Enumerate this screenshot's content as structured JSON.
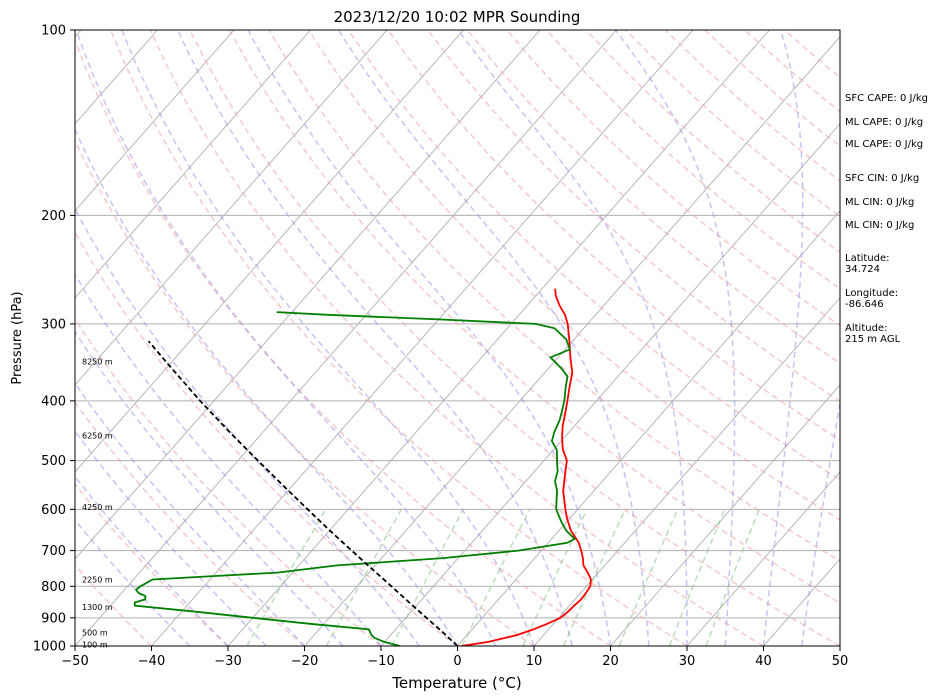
{
  "chart_data": {
    "type": "line",
    "title": "2023/12/20 10:02 MPR Sounding",
    "xlabel": "Temperature (°C)",
    "ylabel": "Pressure (hPa)",
    "xlim": [
      -50,
      50
    ],
    "ylim": [
      1000,
      100
    ],
    "y_scale": "log",
    "skew": true,
    "grid": true,
    "x_ticks": [
      "−50",
      "−40",
      "−30",
      "−20",
      "−10",
      "0",
      "10",
      "20",
      "30",
      "40",
      "50"
    ],
    "y_ticks": [
      "100",
      "200",
      "300",
      "400",
      "500",
      "600",
      "700",
      "800",
      "900",
      "1000"
    ],
    "x_tick_values": [
      -50,
      -40,
      -30,
      -20,
      -10,
      0,
      10,
      20,
      30,
      40,
      50
    ],
    "y_tick_values": [
      100,
      200,
      300,
      400,
      500,
      600,
      700,
      800,
      900,
      1000
    ],
    "height_labels": [
      {
        "text": "8250 m",
        "p": 345
      },
      {
        "text": "6250 m",
        "p": 455
      },
      {
        "text": "4250 m",
        "p": 595
      },
      {
        "text": "2250 m",
        "p": 780
      },
      {
        "text": "1300 m",
        "p": 865
      },
      {
        "text": "500 m",
        "p": 950
      },
      {
        "text": "100 m",
        "p": 995
      }
    ],
    "series": [
      {
        "color": "#ff0000",
        "style": "solid",
        "points": [
          [
            1000,
            0.5
          ],
          [
            985,
            3.5
          ],
          [
            960,
            6.5
          ],
          [
            940,
            8
          ],
          [
            920,
            9.2
          ],
          [
            900,
            10.2
          ],
          [
            880,
            10.5
          ],
          [
            860,
            10.6
          ],
          [
            840,
            10.8
          ],
          [
            820,
            10.7
          ],
          [
            800,
            10.5
          ],
          [
            780,
            9.8
          ],
          [
            760,
            8.6
          ],
          [
            740,
            7.2
          ],
          [
            720,
            6.3
          ],
          [
            700,
            5.2
          ],
          [
            680,
            4.0
          ],
          [
            650,
            1.6
          ],
          [
            620,
            -0.4
          ],
          [
            600,
            -1.6
          ],
          [
            560,
            -4.0
          ],
          [
            520,
            -6.0
          ],
          [
            500,
            -7.0
          ],
          [
            480,
            -8.8
          ],
          [
            460,
            -10.2
          ],
          [
            440,
            -11.5
          ],
          [
            420,
            -12.6
          ],
          [
            400,
            -13.8
          ],
          [
            380,
            -15.1
          ],
          [
            360,
            -16.4
          ],
          [
            340,
            -18.4
          ],
          [
            320,
            -20.4
          ],
          [
            300,
            -22.6
          ],
          [
            290,
            -24.0
          ],
          [
            280,
            -25.8
          ],
          [
            270,
            -27.4
          ],
          [
            263,
            -28.3
          ]
        ]
      },
      {
        "color": "#008000",
        "style": "solid",
        "points": [
          [
            1000,
            -7.5
          ],
          [
            985,
            -10
          ],
          [
            970,
            -11.8
          ],
          [
            960,
            -12.5
          ],
          [
            940,
            -13.5
          ],
          [
            920,
            -22
          ],
          [
            900,
            -30
          ],
          [
            880,
            -38
          ],
          [
            860,
            -46.8
          ],
          [
            850,
            -47.2
          ],
          [
            840,
            -46.2
          ],
          [
            830,
            -46.5
          ],
          [
            820,
            -47.8
          ],
          [
            810,
            -48.5
          ],
          [
            800,
            -48.3
          ],
          [
            780,
            -47.5
          ],
          [
            770,
            -40
          ],
          [
            760,
            -32
          ],
          [
            740,
            -25
          ],
          [
            720,
            -12
          ],
          [
            700,
            -3
          ],
          [
            680,
            2.5
          ],
          [
            670,
            3.0
          ],
          [
            650,
            1.0
          ],
          [
            630,
            -0.6
          ],
          [
            600,
            -2.8
          ],
          [
            580,
            -3.8
          ],
          [
            560,
            -4.8
          ],
          [
            540,
            -6.2
          ],
          [
            520,
            -7.0
          ],
          [
            505,
            -8.0
          ],
          [
            495,
            -8.6
          ],
          [
            480,
            -9.6
          ],
          [
            465,
            -11.2
          ],
          [
            450,
            -11.9
          ],
          [
            430,
            -12.6
          ],
          [
            420,
            -13.1
          ],
          [
            400,
            -14.2
          ],
          [
            380,
            -15.6
          ],
          [
            365,
            -16.6
          ],
          [
            355,
            -18.2
          ],
          [
            340,
            -21.0
          ],
          [
            330,
            -19.4
          ],
          [
            318,
            -21.0
          ],
          [
            305,
            -23.8
          ],
          [
            300,
            -26.8
          ],
          [
            295,
            -40
          ],
          [
            290,
            -55
          ],
          [
            287,
            -62
          ]
        ]
      },
      {
        "color": "#000000",
        "style": "dashed",
        "points": [
          [
            1000,
            0.0
          ],
          [
            950,
            -3.5
          ],
          [
            900,
            -7.3
          ],
          [
            850,
            -11.3
          ],
          [
            800,
            -15.5
          ],
          [
            750,
            -20.0
          ],
          [
            700,
            -24.8
          ],
          [
            650,
            -29.9
          ],
          [
            600,
            -35.3
          ],
          [
            550,
            -41.1
          ],
          [
            500,
            -47.4
          ],
          [
            450,
            -54.3
          ],
          [
            400,
            -61.8
          ],
          [
            350,
            -70.0
          ],
          [
            320,
            -75.4
          ]
        ]
      }
    ]
  },
  "sidebar": {
    "sfc_cape": "SFC CAPE: 0 J/kg",
    "ml_cape_1": "ML CAPE: 0 J/kg",
    "ml_cape_2": "ML CAPE: 0 J/kg",
    "sfc_cin": "SFC CIN: 0 J/kg",
    "ml_cin_1": "ML CIN: 0 J/kg",
    "ml_cin_2": "ML CIN: 0 J/kg",
    "latitude_label": "Latitude:",
    "latitude_value": "34.724",
    "longitude_label": "Longitude:",
    "longitude_value": "-86.646",
    "altitude_label": "Altitude:",
    "altitude_value": "215 m AGL"
  }
}
